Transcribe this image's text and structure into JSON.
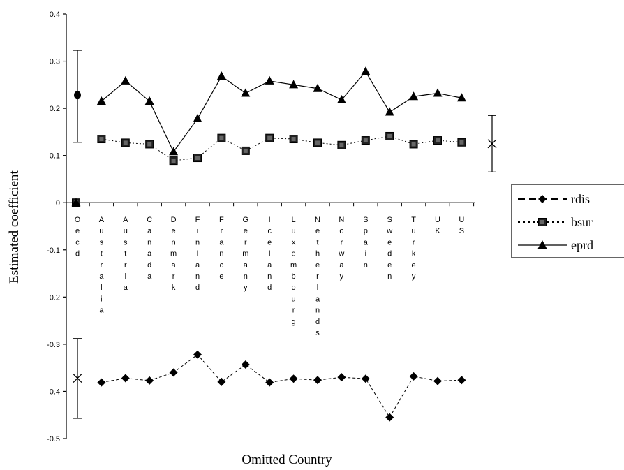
{
  "chart_data": {
    "type": "line",
    "title": "",
    "xlabel": "Omitted Country",
    "ylabel": "Estimated coefficient",
    "ylim": [
      -0.5,
      0.4
    ],
    "yticks": [
      "0.4",
      "0.3",
      "0.2",
      "0.1",
      "0",
      "-0.1",
      "-0.2",
      "-0.3",
      "-0.4",
      "-0.5"
    ],
    "categories": [
      "Oecd",
      "Australia",
      "Austria",
      "Canada",
      "Denmark",
      "Finland",
      "France",
      "Germany",
      "Iceland",
      "Luxembourg",
      "Netherlands",
      "Norway",
      "Spain",
      "Sweden",
      "Turkey",
      "UK",
      "US"
    ],
    "series": [
      {
        "name": "rdis",
        "values": [
          0,
          -0.381,
          -0.372,
          -0.377,
          -0.36,
          -0.322,
          -0.38,
          -0.343,
          -0.381,
          -0.373,
          -0.376,
          -0.37,
          -0.373,
          -0.455,
          -0.368,
          -0.378,
          -0.376
        ]
      },
      {
        "name": "bsur",
        "values": [
          0,
          0.135,
          0.127,
          0.124,
          0.089,
          0.095,
          0.137,
          0.11,
          0.137,
          0.135,
          0.127,
          0.122,
          0.132,
          0.141,
          0.124,
          0.132,
          0.128
        ]
      },
      {
        "name": "eprd",
        "values": [
          0,
          0.215,
          0.258,
          0.215,
          0.108,
          0.178,
          0.268,
          0.232,
          0.258,
          0.25,
          0.242,
          0.218,
          0.278,
          0.192,
          0.225,
          0.232,
          0.222
        ]
      }
    ],
    "error_bars": [
      {
        "series": "eprd",
        "position": "left",
        "center": 0.228,
        "low": 0.128,
        "high": 0.323,
        "marker": "circle"
      },
      {
        "series": "rdis",
        "position": "left",
        "center": -0.372,
        "low": -0.457,
        "high": -0.288,
        "marker": "x"
      },
      {
        "series": "bsur",
        "position": "right",
        "center": 0.125,
        "low": 0.065,
        "high": 0.185,
        "marker": "x"
      }
    ],
    "legend": {
      "placement": "right",
      "entries": [
        "rdis",
        "bsur",
        "eprd"
      ]
    },
    "grid": false
  }
}
